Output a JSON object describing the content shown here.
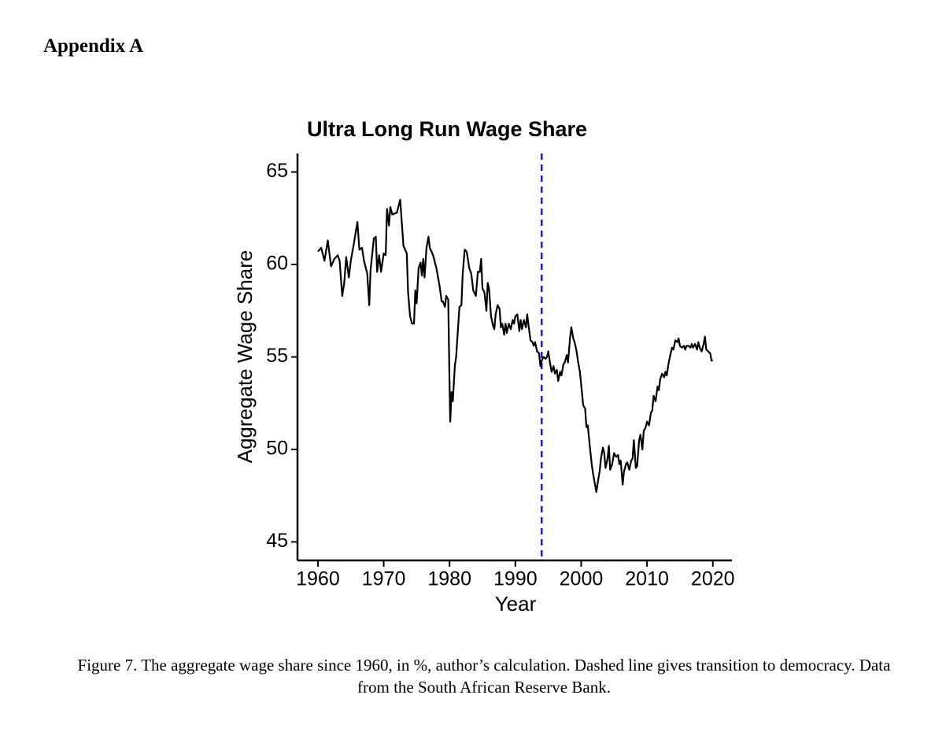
{
  "heading": "Appendix A",
  "chart_data": {
    "type": "line",
    "title": "Ultra Long Run Wage Share",
    "xlabel": "Year",
    "ylabel": "Aggregate Wage Share",
    "x": [
      1960,
      1960.5,
      1961,
      1961.5,
      1962,
      1962.5,
      1963,
      1963.3,
      1963.7,
      1964,
      1964.3,
      1964.7,
      1965,
      1965.5,
      1966,
      1966.3,
      1966.7,
      1967,
      1967.5,
      1967.8,
      1968,
      1968.5,
      1968.8,
      1969,
      1969.3,
      1969.6,
      1970,
      1970.3,
      1970.5,
      1970.8,
      1971,
      1971.3,
      1972,
      1972.5,
      1973,
      1973.5,
      1973.7,
      1974,
      1974.3,
      1974.6,
      1974.8,
      1975,
      1975.3,
      1975.6,
      1975.8,
      1976,
      1976.2,
      1976.5,
      1976.8,
      1977,
      1977.5,
      1978,
      1978.5,
      1978.8,
      1979,
      1979.3,
      1979.5,
      1979.8,
      1980,
      1980.1,
      1980.3,
      1980.5,
      1980.8,
      1981,
      1981.5,
      1981.8,
      1982,
      1982.3,
      1982.6,
      1983,
      1983.3,
      1983.6,
      1984,
      1984.3,
      1984.6,
      1984.8,
      1985,
      1985.3,
      1985.6,
      1985.8,
      1986,
      1986.3,
      1986.6,
      1986.8,
      1987,
      1987.3,
      1987.6,
      1987.8,
      1988,
      1988.3,
      1988.5,
      1988.7,
      1989,
      1989.3,
      1989.6,
      1989.8,
      1990,
      1990.3,
      1990.6,
      1990.8,
      1991,
      1991.3,
      1991.6,
      1991.8,
      1992,
      1992.3,
      1992.6,
      1992.8,
      1993,
      1993.3,
      1993.6,
      1993.8,
      1994,
      1994.3,
      1994.6,
      1994.8,
      1995,
      1995.3,
      1995.5,
      1995.8,
      1996,
      1996.3,
      1996.5,
      1996.8,
      1997,
      1997.3,
      1997.5,
      1997.8,
      1998,
      1998.3,
      1998.5,
      1998.8,
      1999,
      1999.3,
      1999.5,
      1999.8,
      2000,
      2000.3,
      2000.6,
      2000.8,
      2001,
      2001.3,
      2001.6,
      2001.8,
      2002,
      2002.3,
      2002.6,
      2002.8,
      2003,
      2003.3,
      2003.5,
      2003.7,
      2004,
      2004.2,
      2004.4,
      2004.7,
      2005,
      2005.3,
      2005.6,
      2005.8,
      2006,
      2006.3,
      2006.5,
      2006.8,
      2007,
      2007.3,
      2007.6,
      2007.8,
      2008,
      2008.3,
      2008.5,
      2008.8,
      2009,
      2009.3,
      2009.5,
      2009.8,
      2010,
      2010.3,
      2010.6,
      2010.8,
      2011,
      2011.3,
      2011.6,
      2011.8,
      2012,
      2012.3,
      2012.6,
      2012.8,
      2013,
      2013.3,
      2013.6,
      2013.8,
      2014,
      2014.3,
      2014.6,
      2014.8,
      2015,
      2015.3,
      2015.6,
      2015.8,
      2016,
      2016.3,
      2016.6,
      2016.8,
      2017,
      2017.3,
      2017.6,
      2017.8,
      2018,
      2018.3,
      2018.6,
      2018.8,
      2019,
      2019.3,
      2019.6,
      2019.8,
      2020
    ],
    "values": [
      60.7,
      60.9,
      60.2,
      61.3,
      59.9,
      60.3,
      60.5,
      60.2,
      58.3,
      59.0,
      60.4,
      59.3,
      60.2,
      61.2,
      62.3,
      60.8,
      60.9,
      60.2,
      59.5,
      57.8,
      59.7,
      61.4,
      61.5,
      59.6,
      60.5,
      59.6,
      60.6,
      60.5,
      63.0,
      62.1,
      63.1,
      62.7,
      62.8,
      63.5,
      61.0,
      60.6,
      58.5,
      57.2,
      56.8,
      56.8,
      58.6,
      57.9,
      59.8,
      60.1,
      59.4,
      60.3,
      59.3,
      60.9,
      61.5,
      60.9,
      60.5,
      59.8,
      58.8,
      58.0,
      58.0,
      57.7,
      58.3,
      58.1,
      53.5,
      51.5,
      53.1,
      52.6,
      54.5,
      55.0,
      57.7,
      57.8,
      59.5,
      60.8,
      60.7,
      59.8,
      59.5,
      58.6,
      58.3,
      59.6,
      59.6,
      60.3,
      58.7,
      58.5,
      57.5,
      59.0,
      58.7,
      57.2,
      56.7,
      56.5,
      57.3,
      57.8,
      57.6,
      56.6,
      56.8,
      56.2,
      56.8,
      56.3,
      56.8,
      56.5,
      57.0,
      56.8,
      57.2,
      57.3,
      56.4,
      57.0,
      56.5,
      57.0,
      56.6,
      57.3,
      56.7,
      55.9,
      55.8,
      55.6,
      55.8,
      55.3,
      55.2,
      54.5,
      54.8,
      55.0,
      54.9,
      55.0,
      55.3,
      54.6,
      54.2,
      54.5,
      54.1,
      54.3,
      53.7,
      54.2,
      54.0,
      54.6,
      54.7,
      55.1,
      54.7,
      56.0,
      56.6,
      56.0,
      55.8,
      55.3,
      54.8,
      54.2,
      53.5,
      52.4,
      52.2,
      51.2,
      51.3,
      50.2,
      49.2,
      48.7,
      48.3,
      47.7,
      48.4,
      48.8,
      49.5,
      50.1,
      49.8,
      49.0,
      49.5,
      50.2,
      48.9,
      49.2,
      49.8,
      49.6,
      49.7,
      49.2,
      49.4,
      48.1,
      48.8,
      49.2,
      49.3,
      48.9,
      49.4,
      49.5,
      50.5,
      49.0,
      49.1,
      50.5,
      50.8,
      50.0,
      51.0,
      51.2,
      51.5,
      51.3,
      52.0,
      52.1,
      52.9,
      52.6,
      53.4,
      53.2,
      53.8,
      54.1,
      53.9,
      54.2,
      54.0,
      54.7,
      55.2,
      55.5,
      55.4,
      55.9,
      55.8,
      56.0,
      55.6,
      55.5,
      55.6,
      55.4,
      55.6,
      55.6,
      55.5,
      55.7,
      55.5,
      55.7,
      55.4,
      55.8,
      55.5,
      55.3,
      55.7,
      56.1,
      55.4,
      55.3,
      55.2,
      54.8,
      54.8
    ],
    "color": "#000000",
    "vline": 1994,
    "vline_color": "#1a1adb",
    "xlim": [
      1956.9,
      2022.9
    ],
    "ylim": [
      44,
      66
    ],
    "xticks": [
      1960,
      1970,
      1980,
      1990,
      2000,
      2010,
      2020
    ],
    "yticks": [
      45,
      50,
      55,
      60,
      65
    ]
  },
  "caption": "Figure 7. The aggregate wage share since 1960, in %, author’s calculation. Dashed line gives transition to democracy. Data from the South African Reserve Bank."
}
